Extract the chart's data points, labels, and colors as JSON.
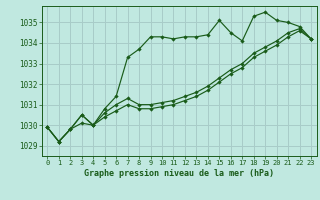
{
  "title": "Graphe pression niveau de la mer (hPa)",
  "bg_color": "#c0e8e0",
  "line_color": "#1a5c1a",
  "grid_color": "#a8ccc8",
  "text_color": "#1a5c1a",
  "xlim": [
    -0.5,
    23.5
  ],
  "ylim": [
    1028.5,
    1035.8
  ],
  "yticks": [
    1029,
    1030,
    1031,
    1032,
    1033,
    1034,
    1035
  ],
  "xticks": [
    0,
    1,
    2,
    3,
    4,
    5,
    6,
    7,
    8,
    9,
    10,
    11,
    12,
    13,
    14,
    15,
    16,
    17,
    18,
    19,
    20,
    21,
    22,
    23
  ],
  "series1": [
    1029.9,
    1029.2,
    1029.8,
    1030.1,
    1030.0,
    1030.8,
    1031.4,
    1033.3,
    1033.7,
    1034.3,
    1034.3,
    1034.2,
    1034.3,
    1034.3,
    1034.4,
    1035.1,
    1034.5,
    1034.1,
    1035.3,
    1035.5,
    1035.1,
    1035.0,
    1034.8,
    1034.2
  ],
  "series2": [
    1029.9,
    1029.2,
    1029.8,
    1030.5,
    1030.0,
    1030.6,
    1031.0,
    1031.3,
    1031.0,
    1031.0,
    1031.1,
    1031.2,
    1031.4,
    1031.6,
    1031.9,
    1032.3,
    1032.7,
    1033.0,
    1033.5,
    1033.8,
    1034.1,
    1034.5,
    1034.7,
    1034.2
  ],
  "series3": [
    1029.9,
    1029.2,
    1029.8,
    1030.5,
    1030.0,
    1030.4,
    1030.7,
    1031.0,
    1030.8,
    1030.8,
    1030.9,
    1031.0,
    1031.2,
    1031.4,
    1031.7,
    1032.1,
    1032.5,
    1032.8,
    1033.3,
    1033.6,
    1033.9,
    1034.3,
    1034.6,
    1034.2
  ]
}
